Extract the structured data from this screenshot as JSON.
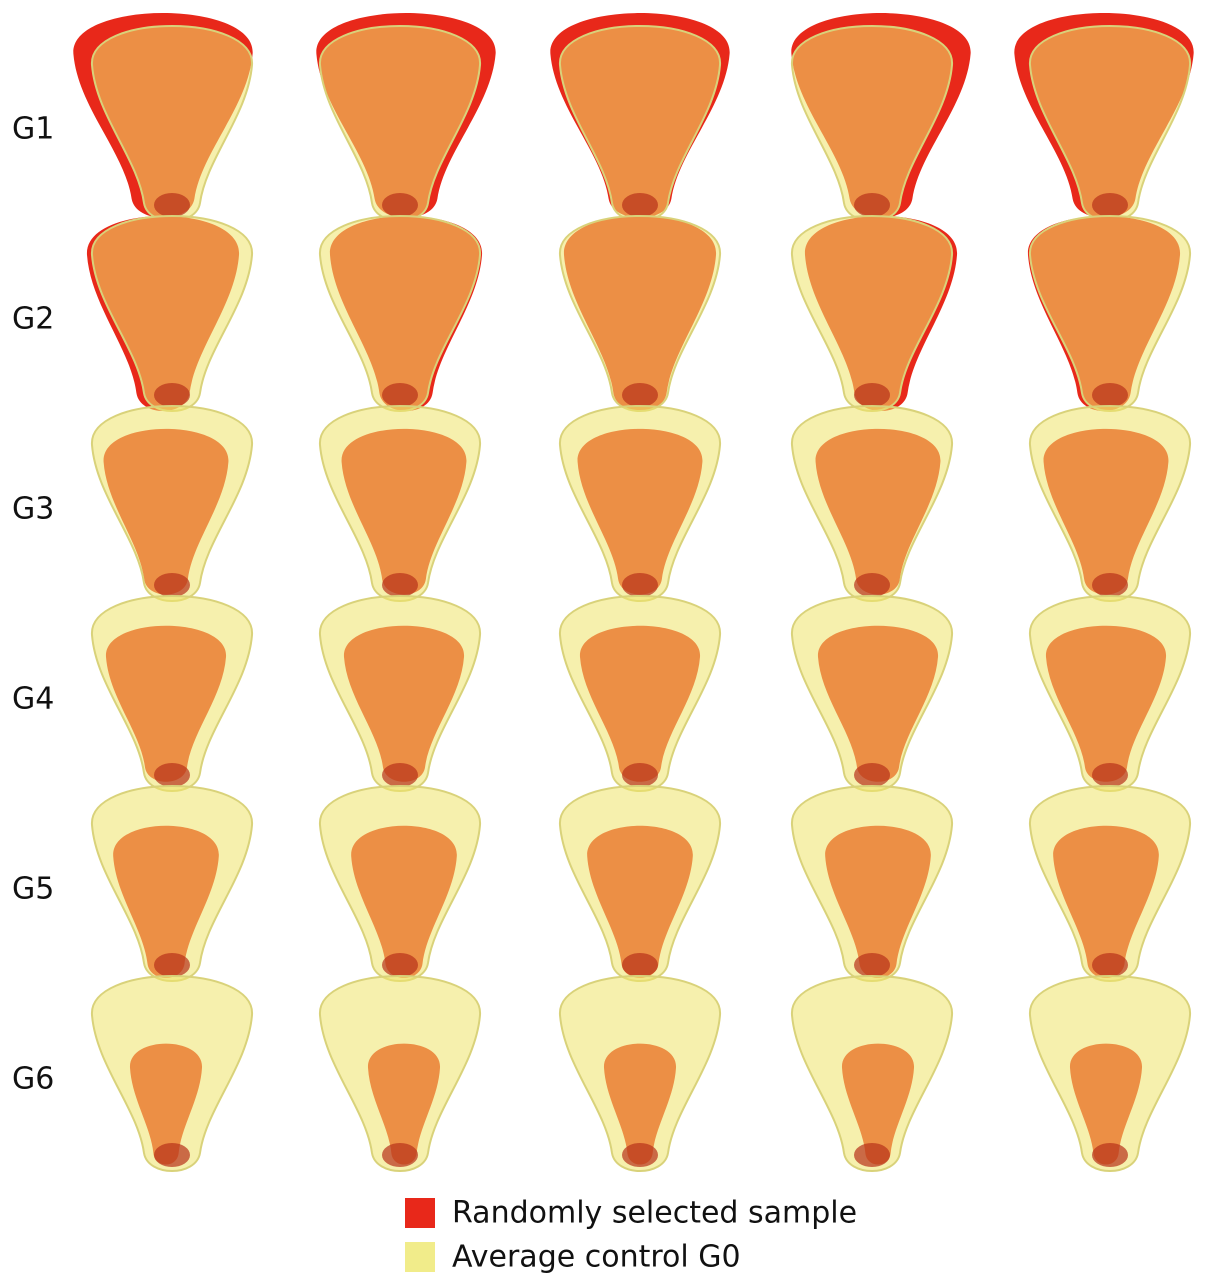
{
  "rows": [
    "G1",
    "G2",
    "G3",
    "G4",
    "G5",
    "G6"
  ],
  "legend": {
    "sample": "Randomly selected sample",
    "control": "Average control G0"
  }
}
